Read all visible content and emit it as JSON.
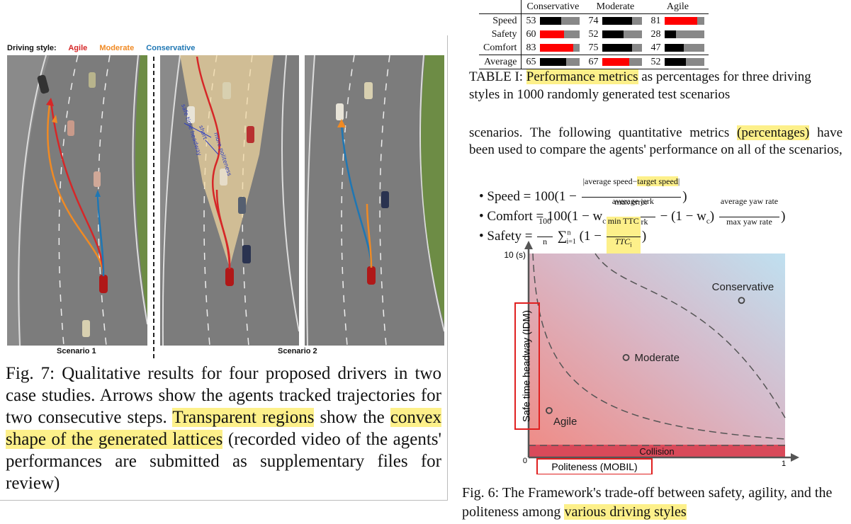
{
  "figure7": {
    "legend": {
      "label": "Driving style:",
      "agile": "Agile",
      "moderate": "Moderate",
      "conservative": "Conservative"
    },
    "colors": {
      "agile": "#d62728",
      "moderate": "#f08a24",
      "conservative": "#1f77b4",
      "road": "#7c7c7c",
      "grass": "#6d8c45",
      "lattice": "#f3d9a0"
    },
    "scenario1_label": "Scenario 1",
    "scenario2_label": "Scenario 2",
    "annotations": {
      "safe_time": "safe time headway",
      "short": "short",
      "more_politeness": "more politeness"
    },
    "caption_prefix": "Fig. 7: Qualitative results for four proposed drivers in two case studies. Arrows show the agents tracked trajectories for two consecutive steps.",
    "caption_hl1": "Transparent regions",
    "caption_mid": "show the",
    "caption_hl2": "convex shape of the generated lattices",
    "caption_suffix": "(recorded video of the agents' performances are submitted as supplementary files for review)"
  },
  "table": {
    "headers": [
      "Conservative",
      "Moderate",
      "Agile"
    ],
    "rows": [
      {
        "label": "Speed",
        "values": [
          53,
          74,
          81
        ]
      },
      {
        "label": "Safety",
        "values": [
          60,
          52,
          28
        ]
      },
      {
        "label": "Comfort",
        "values": [
          83,
          75,
          47
        ]
      },
      {
        "label": "Average",
        "values": [
          65,
          67,
          52
        ]
      }
    ],
    "caption_prefix": "TABLE I:",
    "caption_hl": "Performance metrics",
    "caption_rest": "as percentages for three driving styles in 1000 randomly generated test scenarios"
  },
  "body": {
    "text_a": "scenarios. The following quantitative metrics",
    "text_hl": "(percentages)",
    "text_b": "have been used to compare the agents' performance on all of the scenarios,"
  },
  "formulas": {
    "speed_a": "Speed = 100(1 −",
    "speed_num_a": "|average speed−",
    "speed_num_hl": "target speed",
    "speed_num_b": "|",
    "speed_den": "max error",
    "speed_b": ")",
    "comfort_a": "Comfort = 100(1 − w",
    "comfort_sub": "c",
    "comfort_num1": "average jerk",
    "comfort_den1": "max jerk",
    "comfort_mid": "− (1 − w",
    "comfort_mid2": ")",
    "comfort_num2": "average yaw rate",
    "comfort_den2": "max yaw rate",
    "comfort_b": ")",
    "safety_a": "Safety =",
    "safety_num0": "100",
    "safety_den0": "n",
    "safety_sum": "∑",
    "safety_sum_sup": "n",
    "safety_sum_sub": "i=1",
    "safety_mid": "(1 −",
    "safety_num": "min TTC",
    "safety_den": "TTC",
    "safety_den_sub": "i",
    "safety_b": ")"
  },
  "chart_data": {
    "type": "scatter",
    "ytick_top": "10 (s)",
    "x_origin": "0",
    "x_end": "1",
    "ylabel": "Safe time headway (IDM)",
    "xlabel": "Politeness (MOBIL)",
    "region_label": "Collision",
    "points": [
      {
        "name": "Conservative",
        "x": 0.83,
        "y": 7.7
      },
      {
        "name": "Moderate",
        "x": 0.38,
        "y": 4.9
      },
      {
        "name": "Agile",
        "x": 0.08,
        "y": 2.3
      }
    ],
    "xlim": [
      0,
      1
    ],
    "ylim": [
      0,
      10
    ],
    "colors": {
      "bg_left": "#f08a84",
      "bg_right": "#bfe0f0",
      "collision": "#d94a5a",
      "highlight_box": "#e02020"
    }
  },
  "caption6": {
    "text_a": "Fig. 6: The Framework's trade-off between safety, agility, and the politeness among",
    "hl": "various driving styles"
  }
}
